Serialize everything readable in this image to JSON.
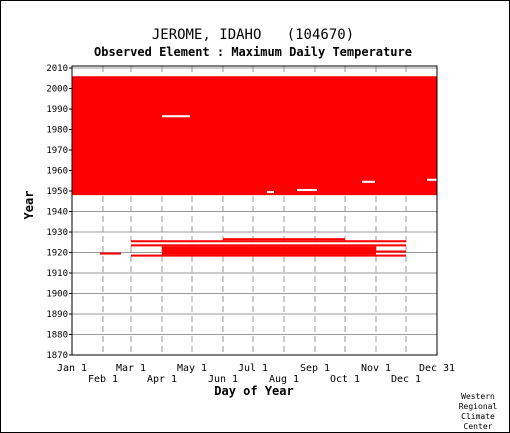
{
  "chart_data": {
    "type": "heatmap",
    "title": "JEROME, IDAHO   (104670)",
    "subtitle": "Observed Element : Maximum Daily Temperature",
    "xlabel": "Day of Year",
    "ylabel": "Year",
    "xlim": [
      1,
      366
    ],
    "ylim": [
      1870,
      2011
    ],
    "x_ticks_upper": [
      {
        "label": "Jan 1",
        "day": 1
      },
      {
        "label": "Mar 1",
        "day": 60
      },
      {
        "label": "May 1",
        "day": 121
      },
      {
        "label": "Jul 1",
        "day": 182
      },
      {
        "label": "Sep 1",
        "day": 244
      },
      {
        "label": "Nov 1",
        "day": 305
      },
      {
        "label": "Dec 31",
        "day": 366
      }
    ],
    "x_ticks_lower": [
      {
        "label": "Feb 1",
        "day": 32
      },
      {
        "label": "Apr 1",
        "day": 91
      },
      {
        "label": "Jun 1",
        "day": 152
      },
      {
        "label": "Aug 1",
        "day": 213
      },
      {
        "label": "Oct 1",
        "day": 274
      },
      {
        "label": "Dec 1",
        "day": 335
      }
    ],
    "y_ticks": [
      2010,
      2000,
      1990,
      1980,
      1970,
      1960,
      1950,
      1940,
      1930,
      1920,
      1910,
      1900,
      1890,
      1880,
      1870
    ],
    "grid": true,
    "colors": {
      "data": "#ff0000",
      "grid": "#999999",
      "axis": "#000000"
    },
    "coverage": [
      {
        "year_start": 1948,
        "year_end": 2006,
        "day_start": 1,
        "day_end": 366
      },
      {
        "year_start": 1925,
        "year_end": 1926,
        "day_start": 60,
        "day_end": 335
      },
      {
        "year_start": 1923,
        "year_end": 1924,
        "day_start": 60,
        "day_end": 335
      },
      {
        "year_start": 1919,
        "year_end": 1923,
        "day_start": 91,
        "day_end": 305
      },
      {
        "year_start": 1926,
        "year_end": 1927,
        "day_start": 152,
        "day_end": 274
      },
      {
        "year_start": 1920,
        "year_end": 1921,
        "day_start": 305,
        "day_end": 335
      },
      {
        "year_start": 1918,
        "year_end": 1919,
        "day_start": 60,
        "day_end": 335
      },
      {
        "year_start": 1919,
        "year_end": 1920,
        "day_start": 29,
        "day_end": 50
      }
    ],
    "gaps": [
      {
        "year_start": 1986,
        "year_end": 1987,
        "day_start": 91,
        "day_end": 119
      },
      {
        "year_start": 1949,
        "year_end": 1950,
        "day_start": 196,
        "day_end": 203
      },
      {
        "year_start": 1950,
        "year_end": 1951,
        "day_start": 226,
        "day_end": 246
      },
      {
        "year_start": 1954,
        "year_end": 1955,
        "day_start": 291,
        "day_end": 304
      },
      {
        "year_start": 1955,
        "year_end": 1956,
        "day_start": 356,
        "day_end": 366
      }
    ]
  },
  "footer": {
    "credit_lines": [
      "Western",
      "Regional",
      "Climate",
      "Center"
    ]
  }
}
